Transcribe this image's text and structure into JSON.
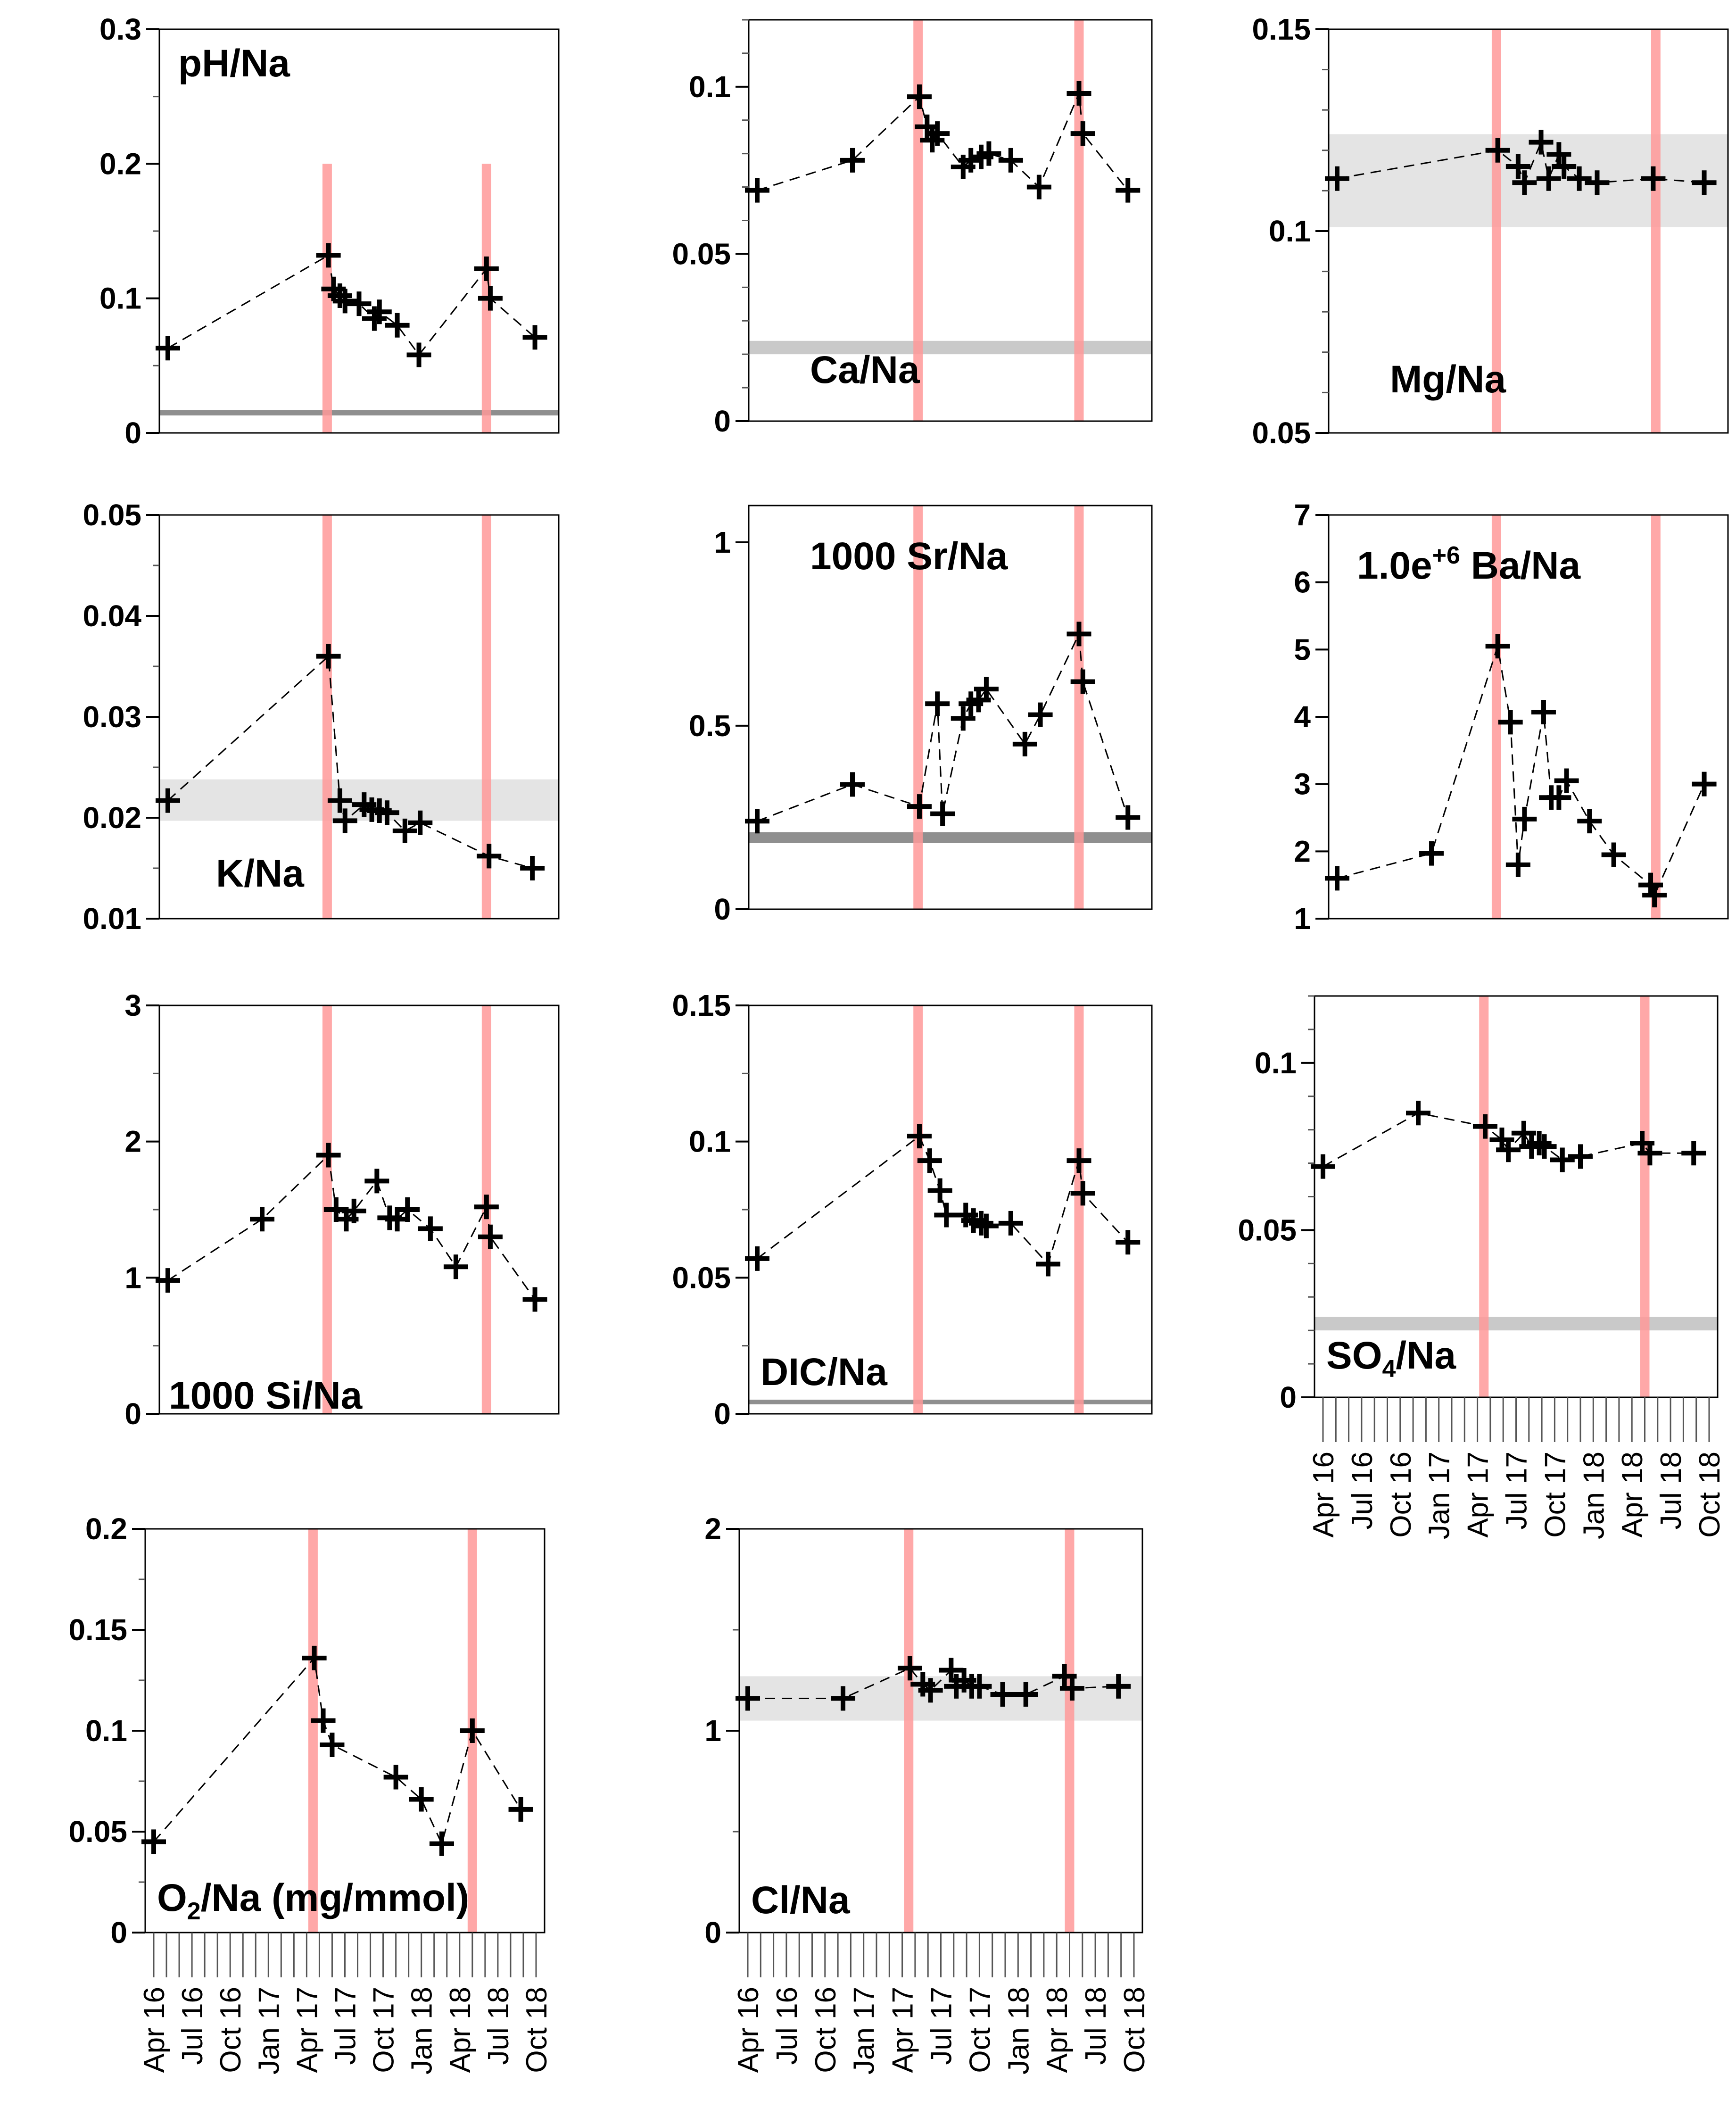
{
  "figure": {
    "date_labels": [
      "Apr 16",
      "Jul 16",
      "Oct 16",
      "Jan 17",
      "Apr 17",
      "Jul 17",
      "Oct 17",
      "Jan 18",
      "Apr 18",
      "Jul 18",
      "Oct 18"
    ],
    "event_times": [
      12.5,
      25.0
    ],
    "colors": {
      "event_line": "#ff9999",
      "band": "#e4e4e4",
      "band_dark": "#c9c9c9",
      "band_darker": "#8f8f8f",
      "data": "#000000"
    }
  },
  "chart_data": [
    {
      "type": "line",
      "name": "pH/Na",
      "title": "pH/Na",
      "title_sup": "",
      "ylim": [
        0,
        0.3
      ],
      "yticks": [
        0,
        0.1,
        0.2,
        0.3
      ],
      "ytick_labels": [
        "0",
        "0.1",
        "0.2",
        "0.3"
      ],
      "minor_step": 0.05,
      "event_line_ymax": 0.2,
      "band": {
        "y": [
          0.013,
          0.017
        ],
        "shade": "darker"
      },
      "x": [
        0,
        12.6,
        13.0,
        13.5,
        13.9,
        15.0,
        16.2,
        16.6,
        18.0,
        19.7,
        25.0,
        25.3,
        28.8
      ],
      "values": [
        0.063,
        0.132,
        0.107,
        0.102,
        0.098,
        0.096,
        0.085,
        0.09,
        0.08,
        0.058,
        0.122,
        0.1,
        0.071
      ]
    },
    {
      "type": "line",
      "name": "Ca/Na",
      "title": "Ca/Na",
      "title_sup": "",
      "ylim": [
        0,
        0.12
      ],
      "yticks": [
        0,
        0.05,
        0.1
      ],
      "ytick_labels": [
        "0",
        "0.05",
        "0.1"
      ],
      "minor_step": 0.01,
      "event_line_ymax": null,
      "band": {
        "y": [
          0.02,
          0.024
        ],
        "shade": "dark"
      },
      "x": [
        0,
        7.4,
        12.6,
        13.2,
        13.6,
        14.0,
        16.0,
        16.6,
        17.4,
        18.0,
        19.7,
        21.9,
        25.0,
        25.3,
        28.8
      ],
      "values": [
        0.069,
        0.078,
        0.097,
        0.088,
        0.084,
        0.086,
        0.076,
        0.078,
        0.079,
        0.08,
        0.078,
        0.07,
        0.098,
        0.086,
        0.069
      ]
    },
    {
      "type": "line",
      "name": "Mg/Na",
      "title": "Mg/Na",
      "title_sup": "",
      "ylim": [
        0.05,
        0.15
      ],
      "yticks": [
        0.05,
        0.1,
        0.15
      ],
      "ytick_labels": [
        "0.05",
        "0.1",
        "0.15"
      ],
      "minor_step": 0.01,
      "event_line_ymax": null,
      "band": {
        "y": [
          0.101,
          0.124
        ],
        "shade": "light"
      },
      "x": [
        0,
        12.6,
        14.2,
        14.7,
        16.0,
        16.6,
        17.4,
        17.8,
        19.0,
        20.4,
        24.8,
        28.8
      ],
      "values": [
        0.113,
        0.12,
        0.116,
        0.112,
        0.122,
        0.113,
        0.119,
        0.116,
        0.113,
        0.112,
        0.113,
        0.112
      ]
    },
    {
      "type": "line",
      "name": "K/Na",
      "title": "K/Na",
      "title_sup": "",
      "ylim": [
        0.01,
        0.05
      ],
      "yticks": [
        0.01,
        0.02,
        0.03,
        0.04,
        0.05
      ],
      "ytick_labels": [
        "0.01",
        "0.02",
        "0.03",
        "0.04",
        "0.05"
      ],
      "minor_step": 0.005,
      "event_line_ymax": null,
      "band": {
        "y": [
          0.0197,
          0.0238
        ],
        "shade": "light"
      },
      "x": [
        0,
        12.6,
        13.5,
        13.9,
        15.4,
        16.0,
        16.6,
        17.2,
        18.6,
        19.8,
        25.2,
        28.6
      ],
      "values": [
        0.0217,
        0.036,
        0.0217,
        0.0197,
        0.0213,
        0.0208,
        0.0207,
        0.0205,
        0.0187,
        0.0195,
        0.0162,
        0.015
      ]
    },
    {
      "type": "line",
      "name": "1000 Sr/Na",
      "title": "1000 Sr/Na",
      "title_sup": "",
      "ylim": [
        0,
        1.1
      ],
      "yticks": [
        0,
        0.5,
        1
      ],
      "ytick_labels": [
        "0",
        "0.5",
        "1"
      ],
      "minor_step": null,
      "event_line_ymax": null,
      "band": {
        "y": [
          0.18,
          0.21
        ],
        "shade": "darker"
      },
      "x": [
        0,
        7.4,
        12.6,
        14.0,
        14.4,
        16.0,
        16.6,
        17.2,
        17.8,
        20.8,
        22.0,
        25.0,
        25.3,
        28.8
      ],
      "values": [
        0.24,
        0.34,
        0.28,
        0.56,
        0.26,
        0.52,
        0.56,
        0.57,
        0.6,
        0.45,
        0.53,
        0.75,
        0.62,
        0.25
      ]
    },
    {
      "type": "line",
      "name": "1.0e+6 Ba/Na",
      "title": "1.0e",
      "title_sup": "+6",
      "title_suffix": " Ba/Na",
      "ylim": [
        1,
        7
      ],
      "yticks": [
        1,
        2,
        3,
        4,
        5,
        6,
        7
      ],
      "ytick_labels": [
        "1",
        "2",
        "3",
        "4",
        "5",
        "6",
        "7"
      ],
      "minor_step": null,
      "event_line_ymax": null,
      "band": null,
      "x": [
        0,
        7.4,
        12.6,
        13.6,
        14.2,
        14.7,
        16.2,
        16.8,
        17.4,
        18.0,
        19.8,
        21.7,
        24.6,
        24.9,
        28.8
      ],
      "values": [
        1.6,
        1.97,
        5.05,
        3.92,
        1.8,
        2.48,
        4.07,
        2.8,
        2.8,
        3.05,
        2.45,
        1.95,
        1.5,
        1.35,
        3.0
      ]
    },
    {
      "type": "line",
      "name": "1000 Si/Na",
      "title": "1000 Si/Na",
      "title_sup": "",
      "ylim": [
        0,
        3
      ],
      "yticks": [
        0,
        1,
        2,
        3
      ],
      "ytick_labels": [
        "0",
        "1",
        "2",
        "3"
      ],
      "minor_step": 0.5,
      "event_line_ymax": null,
      "band": null,
      "x": [
        0,
        7.4,
        12.6,
        13.2,
        14.0,
        14.6,
        16.4,
        17.4,
        18.0,
        18.8,
        20.6,
        22.6,
        25.0,
        25.3,
        28.8
      ],
      "values": [
        0.98,
        1.43,
        1.9,
        1.5,
        1.43,
        1.49,
        1.71,
        1.44,
        1.43,
        1.5,
        1.36,
        1.08,
        1.52,
        1.3,
        0.84
      ]
    },
    {
      "type": "line",
      "name": "DIC/Na",
      "title": "DIC/Na",
      "title_sup": "",
      "ylim": [
        0,
        0.15
      ],
      "yticks": [
        0,
        0.05,
        0.1,
        0.15
      ],
      "ytick_labels": [
        "0",
        "0.05",
        "0.1",
        "0.15"
      ],
      "minor_step": 0.025,
      "event_line_ymax": null,
      "band": {
        "y": [
          0.0035,
          0.0052
        ],
        "shade": "darker"
      },
      "x": [
        0,
        12.6,
        13.4,
        14.2,
        14.7,
        16.2,
        16.8,
        17.4,
        17.8,
        19.7,
        22.6,
        25.0,
        25.3,
        28.8
      ],
      "values": [
        0.057,
        0.102,
        0.093,
        0.082,
        0.073,
        0.073,
        0.071,
        0.07,
        0.069,
        0.07,
        0.055,
        0.093,
        0.081,
        0.063
      ]
    },
    {
      "type": "line",
      "name": "SO4/Na",
      "title": "SO",
      "title_sub": "4",
      "title_suffix": "/Na",
      "title_sup": "",
      "ylim": [
        0,
        0.12
      ],
      "yticks": [
        0,
        0.05,
        0.1
      ],
      "ytick_labels": [
        "0",
        "0.05",
        "0.1"
      ],
      "minor_step": 0.01,
      "event_line_ymax": null,
      "band": {
        "y": [
          0.02,
          0.024
        ],
        "shade": "dark"
      },
      "x": [
        0,
        7.4,
        12.6,
        13.9,
        14.4,
        15.6,
        16.2,
        16.8,
        17.2,
        18.6,
        20.0,
        24.8,
        25.4,
        28.8
      ],
      "values": [
        0.069,
        0.085,
        0.081,
        0.077,
        0.074,
        0.079,
        0.075,
        0.076,
        0.075,
        0.071,
        0.072,
        0.076,
        0.073,
        0.073
      ]
    },
    {
      "type": "line",
      "name": "O2/Na",
      "title": "O",
      "title_sub": "2",
      "title_suffix": "/Na (mg/mmol)",
      "title_sup": "",
      "ylim": [
        0,
        0.2
      ],
      "yticks": [
        0,
        0.05,
        0.1,
        0.15,
        0.2
      ],
      "ytick_labels": [
        "0",
        "0.05",
        "0.1",
        "0.15",
        "0.2"
      ],
      "minor_step": 0.025,
      "event_line_ymax": null,
      "band": null,
      "x": [
        0,
        12.6,
        13.3,
        14.0,
        19.0,
        21.0,
        22.6,
        25.0,
        28.8
      ],
      "values": [
        0.045,
        0.136,
        0.105,
        0.093,
        0.077,
        0.066,
        0.044,
        0.1,
        0.061
      ]
    },
    {
      "type": "line",
      "name": "Cl/Na",
      "title": "Cl/Na",
      "title_sup": "",
      "ylim": [
        0,
        2
      ],
      "yticks": [
        0,
        1,
        2
      ],
      "ytick_labels": [
        "0",
        "1",
        "2"
      ],
      "minor_step": 0.5,
      "event_line_ymax": null,
      "band": {
        "y": [
          1.05,
          1.27
        ],
        "shade": "light"
      },
      "x": [
        0,
        7.4,
        12.6,
        13.6,
        14.2,
        15.8,
        16.2,
        16.8,
        17.4,
        18.0,
        19.8,
        21.6,
        24.6,
        25.2,
        28.8
      ],
      "values": [
        1.16,
        1.16,
        1.31,
        1.23,
        1.2,
        1.3,
        1.22,
        1.25,
        1.22,
        1.22,
        1.18,
        1.18,
        1.27,
        1.21,
        1.22
      ]
    }
  ]
}
